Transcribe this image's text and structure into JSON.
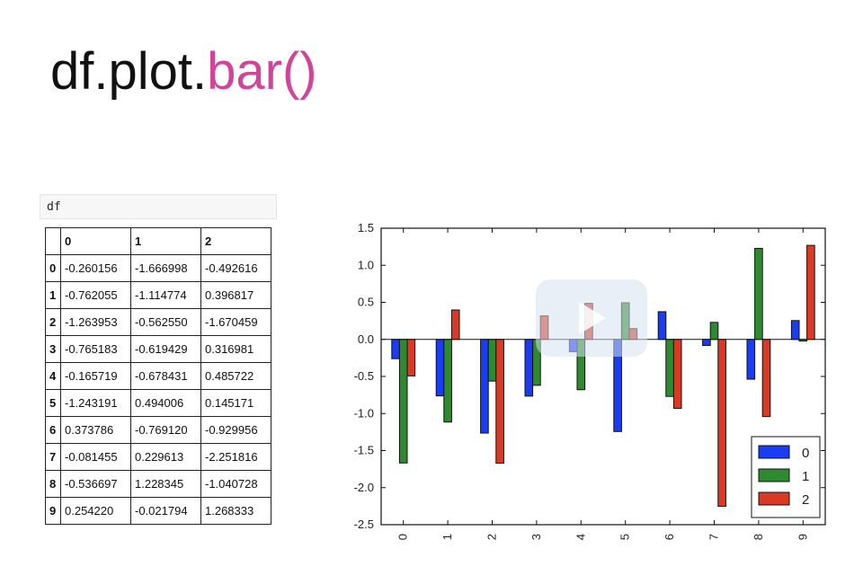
{
  "slide": {
    "title_prefix": "df.plot.",
    "title_accent": "bar()",
    "accent_color": "#d1449a"
  },
  "code_cell": {
    "code": "df"
  },
  "dataframe": {
    "columns": [
      "",
      "0",
      "1",
      "2"
    ],
    "rows": [
      [
        "0",
        "-0.260156",
        "-1.666998",
        "-0.492616"
      ],
      [
        "1",
        "-0.762055",
        "-1.114774",
        "0.396817"
      ],
      [
        "2",
        "-1.263953",
        "-0.562550",
        "-1.670459"
      ],
      [
        "3",
        "-0.765183",
        "-0.619429",
        "0.316981"
      ],
      [
        "4",
        "-0.165719",
        "-0.678431",
        "0.485722"
      ],
      [
        "5",
        "-1.243191",
        "0.494006",
        "0.145171"
      ],
      [
        "6",
        "0.373786",
        "-0.769120",
        "-0.929956"
      ],
      [
        "7",
        "-0.081455",
        "0.229613",
        "-2.251816"
      ],
      [
        "8",
        "-0.536697",
        "1.228345",
        "-1.040728"
      ],
      [
        "9",
        "0.254220",
        "-0.021794",
        "1.268333"
      ]
    ]
  },
  "chart_data": {
    "type": "bar",
    "categories": [
      "0",
      "1",
      "2",
      "3",
      "4",
      "5",
      "6",
      "7",
      "8",
      "9"
    ],
    "series": [
      {
        "name": "0",
        "color": "#1a3cf5",
        "values": [
          -0.260156,
          -0.762055,
          -1.263953,
          -0.765183,
          -0.165719,
          -1.243191,
          0.373786,
          -0.081455,
          -0.536697,
          0.25422
        ]
      },
      {
        "name": "1",
        "color": "#2e8a2e",
        "values": [
          -1.666998,
          -1.114774,
          -0.56255,
          -0.619429,
          -0.678431,
          0.494006,
          -0.76912,
          0.229613,
          1.228345,
          -0.021794
        ]
      },
      {
        "name": "2",
        "color": "#d93a25",
        "values": [
          -0.492616,
          0.396817,
          -1.670459,
          0.316981,
          0.485722,
          0.145171,
          -0.929956,
          -2.251816,
          -1.040728,
          1.268333
        ]
      }
    ],
    "ylim": [
      -2.5,
      1.5
    ],
    "yticks": [
      "1.5",
      "1.0",
      "0.5",
      "0.0",
      "-0.5",
      "-1.0",
      "-1.5",
      "-2.0",
      "-2.5"
    ],
    "ytick_values": [
      1.5,
      1.0,
      0.5,
      0.0,
      -0.5,
      -1.0,
      -1.5,
      -2.0,
      -2.5
    ],
    "xlabel": "",
    "ylabel": "",
    "title": "",
    "legend_position": "lower-right",
    "grid": false
  },
  "overlay": {
    "icon": "play-icon"
  }
}
